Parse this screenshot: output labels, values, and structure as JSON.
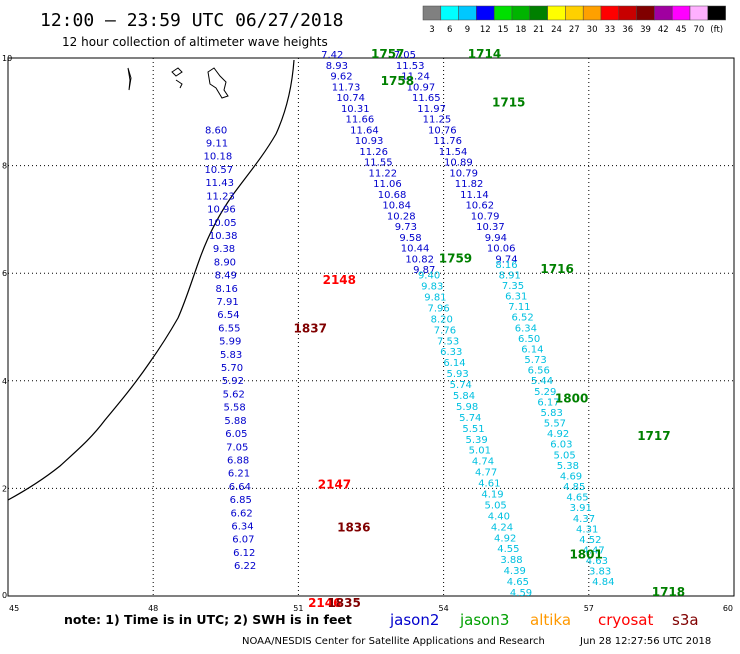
{
  "header": {
    "title": "12:00 – 23:59 UTC 06/27/2018",
    "subtitle": "12 hour collection of altimeter wave heights"
  },
  "legend": {
    "labels": [
      "3",
      "6",
      "9",
      "12",
      "15",
      "18",
      "21",
      "24",
      "27",
      "30",
      "33",
      "36",
      "39",
      "42",
      "45",
      "70",
      "(ft)"
    ],
    "colors": [
      "#808080",
      "#00ffff",
      "#00c8ff",
      "#0000ff",
      "#00e000",
      "#00b400",
      "#008000",
      "#ffff00",
      "#ffd000",
      "#ffa000",
      "#ff0000",
      "#c80000",
      "#800000",
      "#a000a0",
      "#ff00ff",
      "#ffb0ff",
      "#000000"
    ]
  },
  "map": {
    "x_ticks": [
      "45",
      "48",
      "51",
      "54",
      "57",
      "60"
    ],
    "y_ticks": [
      "0",
      "2",
      "4",
      "6",
      "8",
      "10"
    ]
  },
  "tracks": [
    {
      "satellite": "jason2",
      "color": "#0000cc",
      "lon_start": 49.3,
      "lon_end": 49.9,
      "lat_start": 8.6,
      "lat_end": 0.5,
      "values": [
        "8.60",
        "9.11",
        "10.18",
        "10.57",
        "11.43",
        "11.23",
        "10.96",
        "10.05",
        "10.38",
        "9.38",
        "8.90",
        "8.49",
        "8.16",
        "7.91",
        "6.54",
        "6.55",
        "5.99",
        "5.83",
        "5.70",
        "5.92",
        "5.62",
        "5.58",
        "5.88",
        "6.05",
        "7.05",
        "6.88",
        "6.21",
        "6.64",
        "6.85",
        "6.62",
        "6.34",
        "6.07",
        "6.12",
        "6.22"
      ]
    },
    {
      "satellite": "jason2",
      "color": "#0000cc",
      "lon_start": 51.7,
      "lon_end": 53.6,
      "lat_start": 10.0,
      "lat_end": 6.0,
      "values": [
        "7.42",
        "8.93",
        "9.62",
        "11.73",
        "10.74",
        "10.31",
        "11.66",
        "11.64",
        "10.93",
        "11.26",
        "11.55",
        "11.22",
        "11.06",
        "10.68",
        "10.84",
        "10.28",
        "9.73",
        "9.58",
        "10.44",
        "10.82",
        "9.87"
      ]
    },
    {
      "satellite": "jason2",
      "color": "#0000cc",
      "lon_start": 53.2,
      "lon_end": 55.3,
      "lat_start": 10.0,
      "lat_end": 6.2,
      "values": [
        "7.05",
        "11.53",
        "11.24",
        "10.97",
        "11.65",
        "11.97",
        "11.25",
        "10.76",
        "11.76",
        "11.54",
        "10.89",
        "10.79",
        "11.82",
        "11.14",
        "10.62",
        "10.79",
        "10.37",
        "9.94",
        "10.06",
        "9.74"
      ]
    },
    {
      "satellite": "jason3",
      "color": "#00c0e0",
      "lon_start": 53.7,
      "lon_end": 55.6,
      "lat_start": 5.9,
      "lat_end": 0.0,
      "values": [
        "9.40",
        "9.83",
        "9.81",
        "7.96",
        "8.20",
        "7.76",
        "7.53",
        "6.33",
        "6.14",
        "5.93",
        "5.74",
        "5.84",
        "5.98",
        "5.74",
        "5.51",
        "5.39",
        "5.01",
        "4.74",
        "4.77",
        "4.61",
        "4.19",
        "5.05",
        "4.40",
        "4.24",
        "4.92",
        "4.55",
        "3.88",
        "4.39",
        "4.65",
        "4.59"
      ]
    },
    {
      "satellite": "jason3",
      "color": "#00c0e0",
      "lon_start": 55.3,
      "lon_end": 57.3,
      "lat_start": 6.1,
      "lat_end": 0.2,
      "values": [
        "8.16",
        "8.91",
        "7.35",
        "6.31",
        "7.11",
        "6.52",
        "6.34",
        "6.50",
        "6.14",
        "5.73",
        "6.56",
        "5.44",
        "5.29",
        "6.17",
        "5.83",
        "5.57",
        "4.92",
        "6.03",
        "5.05",
        "5.38",
        "4.69",
        "4.85",
        "4.65",
        "3.91",
        "4.37",
        "4.31",
        "4.52",
        "4.47",
        "4.63",
        "3.83",
        "4.84"
      ]
    }
  ],
  "time_labels": [
    {
      "text": "1757",
      "color": "#008000",
      "lon": 52.5,
      "lat": 10.0
    },
    {
      "text": "1714",
      "color": "#008000",
      "lon": 54.5,
      "lat": 10.0
    },
    {
      "text": "1758",
      "color": "#008000",
      "lon": 52.7,
      "lat": 9.5
    },
    {
      "text": "1715",
      "color": "#008000",
      "lon": 55.0,
      "lat": 9.1
    },
    {
      "text": "1759",
      "color": "#008000",
      "lon": 53.9,
      "lat": 6.2
    },
    {
      "text": "1716",
      "color": "#008000",
      "lon": 56.0,
      "lat": 6.0
    },
    {
      "text": "1800",
      "color": "#008000",
      "lon": 56.3,
      "lat": 3.6
    },
    {
      "text": "1717",
      "color": "#008000",
      "lon": 58.0,
      "lat": 2.9
    },
    {
      "text": "1801",
      "color": "#008000",
      "lon": 56.6,
      "lat": 0.7
    },
    {
      "text": "1718",
      "color": "#008000",
      "lon": 58.3,
      "lat": 0.0
    },
    {
      "text": "2148",
      "color": "#ff0000",
      "lon": 51.5,
      "lat": 5.8
    },
    {
      "text": "1837",
      "color": "#800000",
      "lon": 50.9,
      "lat": 4.9
    },
    {
      "text": "2147",
      "color": "#ff0000",
      "lon": 51.4,
      "lat": 2.0
    },
    {
      "text": "1836",
      "color": "#800000",
      "lon": 51.8,
      "lat": 1.2
    },
    {
      "text": "2146",
      "color": "#ff0000",
      "lon": 51.2,
      "lat": -0.2
    },
    {
      "text": "1835",
      "color": "#800000",
      "lon": 51.6,
      "lat": -0.2
    }
  ],
  "footer": {
    "note": "note: 1) Time is in UTC; 2) SWH is in feet",
    "satellites": [
      {
        "name": "jason2",
        "color": "#0000cc"
      },
      {
        "name": "jason3",
        "color": "#00a000"
      },
      {
        "name": "altika",
        "color": "#ff9900"
      },
      {
        "name": "cryosat",
        "color": "#ff0000"
      },
      {
        "name": "s3a",
        "color": "#800000"
      }
    ],
    "credit": "NOAA/NESDIS Center for Satellite Applications and Research",
    "timestamp": "Jun 28 12:27:56 UTC 2018"
  }
}
